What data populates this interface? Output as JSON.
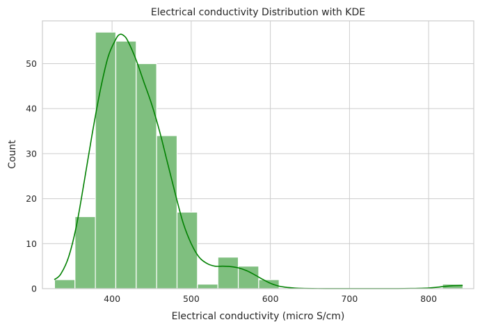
{
  "chart_data": {
    "type": "bar",
    "title": "Electrical conductivity Distribution with KDE",
    "xlabel": "Electrical conductivity (micro S/cm)",
    "ylabel": "Count",
    "xlim": [
      312,
      857
    ],
    "ylim": [
      0,
      59.5
    ],
    "xticks": [
      400,
      500,
      600,
      700,
      800
    ],
    "yticks": [
      0,
      10,
      20,
      30,
      40,
      50
    ],
    "grid": true,
    "legend": "none",
    "bar_color": "#7fbf7f",
    "kde_color": "#008000",
    "bin_edges": [
      327.3,
      353.1,
      378.9,
      404.7,
      430.5,
      456.3,
      482.1,
      507.9,
      533.7,
      559.5,
      585.3,
      611.1,
      636.9,
      662.7,
      688.5,
      714.3,
      740.1,
      765.9,
      791.7,
      817.5,
      843.3
    ],
    "values": [
      2,
      16,
      57,
      55,
      50,
      34,
      17,
      1,
      7,
      5,
      2,
      0,
      0,
      0,
      0,
      0,
      0,
      0,
      0,
      1
    ],
    "kde": {
      "x": [
        327,
        335,
        345,
        355,
        365,
        375,
        385,
        395,
        405,
        410,
        415,
        420,
        430,
        440,
        450,
        460,
        470,
        480,
        490,
        500,
        510,
        520,
        530,
        540,
        550,
        560,
        570,
        580,
        590,
        600,
        610,
        620,
        630,
        640,
        660,
        680,
        700,
        720,
        740,
        760,
        780,
        800,
        810,
        820,
        830,
        843
      ],
      "y": [
        2,
        3.2,
        7,
        14,
        24,
        34.5,
        44,
        51.5,
        55.5,
        56.5,
        56.2,
        55,
        51,
        46,
        41,
        35,
        28,
        21,
        14.5,
        10,
        7,
        5.6,
        5,
        5,
        4.9,
        4.6,
        4,
        3.1,
        2.1,
        1.2,
        0.6,
        0.3,
        0.15,
        0.06,
        0.02,
        0.01,
        0.01,
        0.01,
        0.01,
        0.01,
        0.05,
        0.15,
        0.3,
        0.5,
        0.65,
        0.7
      ]
    }
  }
}
